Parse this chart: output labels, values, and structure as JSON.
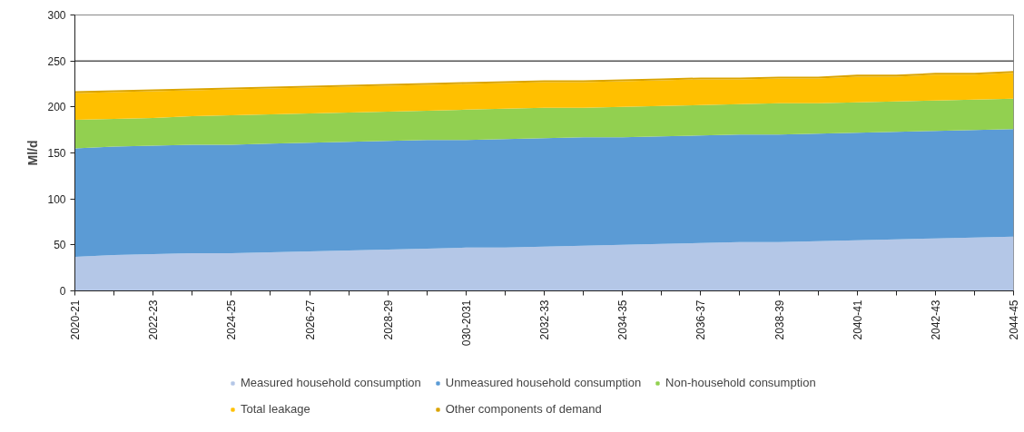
{
  "chart_data": {
    "type": "area",
    "stacked": true,
    "ylabel": "Ml/d",
    "categories": [
      "2020-21",
      null,
      "2022-23",
      null,
      "2024-25",
      null,
      "2026-27",
      null,
      "2028-29",
      null,
      "030-2031",
      null,
      "2032-33",
      null,
      "2034-35",
      null,
      "2036-37",
      null,
      "2038-39",
      null,
      "2040-41",
      null,
      "2042-43",
      null,
      "2044-45"
    ],
    "series": [
      {
        "name": "Measured household consumption",
        "color": "#b4c7e7",
        "values": [
          37,
          39,
          40,
          41,
          41,
          42,
          43,
          44,
          45,
          46,
          47,
          47,
          48,
          49,
          50,
          51,
          52,
          53,
          53,
          54,
          55,
          56,
          57,
          58,
          59
        ]
      },
      {
        "name": "Unmeasured household consumption",
        "color": "#5b9bd5",
        "values": [
          118,
          118,
          118,
          118,
          118,
          118,
          118,
          118,
          118,
          118,
          117,
          118,
          118,
          118,
          117,
          117,
          117,
          117,
          117,
          117,
          117,
          117,
          117,
          117,
          117
        ]
      },
      {
        "name": "Non-household consumption",
        "color": "#92d050",
        "values": [
          31,
          30,
          30,
          31,
          32,
          32,
          32,
          32,
          32,
          32,
          33,
          33,
          33,
          32,
          33,
          33,
          33,
          33,
          34,
          33,
          33,
          33,
          33,
          33,
          33
        ]
      },
      {
        "name": "Total leakage",
        "color": "#ffc000",
        "values": [
          29,
          29,
          29,
          28,
          28,
          28,
          28,
          28,
          28,
          28,
          28,
          28,
          28,
          28,
          28,
          28,
          28,
          27,
          27,
          27,
          28,
          27,
          28,
          27,
          28
        ]
      },
      {
        "name": "Other components of demand",
        "color": "#dba400",
        "values": [
          2,
          2,
          2,
          2,
          2,
          2,
          2,
          2,
          2,
          2,
          2,
          2,
          2,
          2,
          2,
          2,
          2,
          2,
          2,
          2,
          2,
          2,
          2,
          2,
          2
        ]
      }
    ],
    "ylim": [
      0,
      300
    ],
    "yticks": [
      0,
      50,
      100,
      150,
      200,
      250,
      300
    ],
    "ref_lines": [
      {
        "axis": "y",
        "value": 250,
        "color": "#000000"
      }
    ],
    "grid": false,
    "legend": "bottom"
  }
}
